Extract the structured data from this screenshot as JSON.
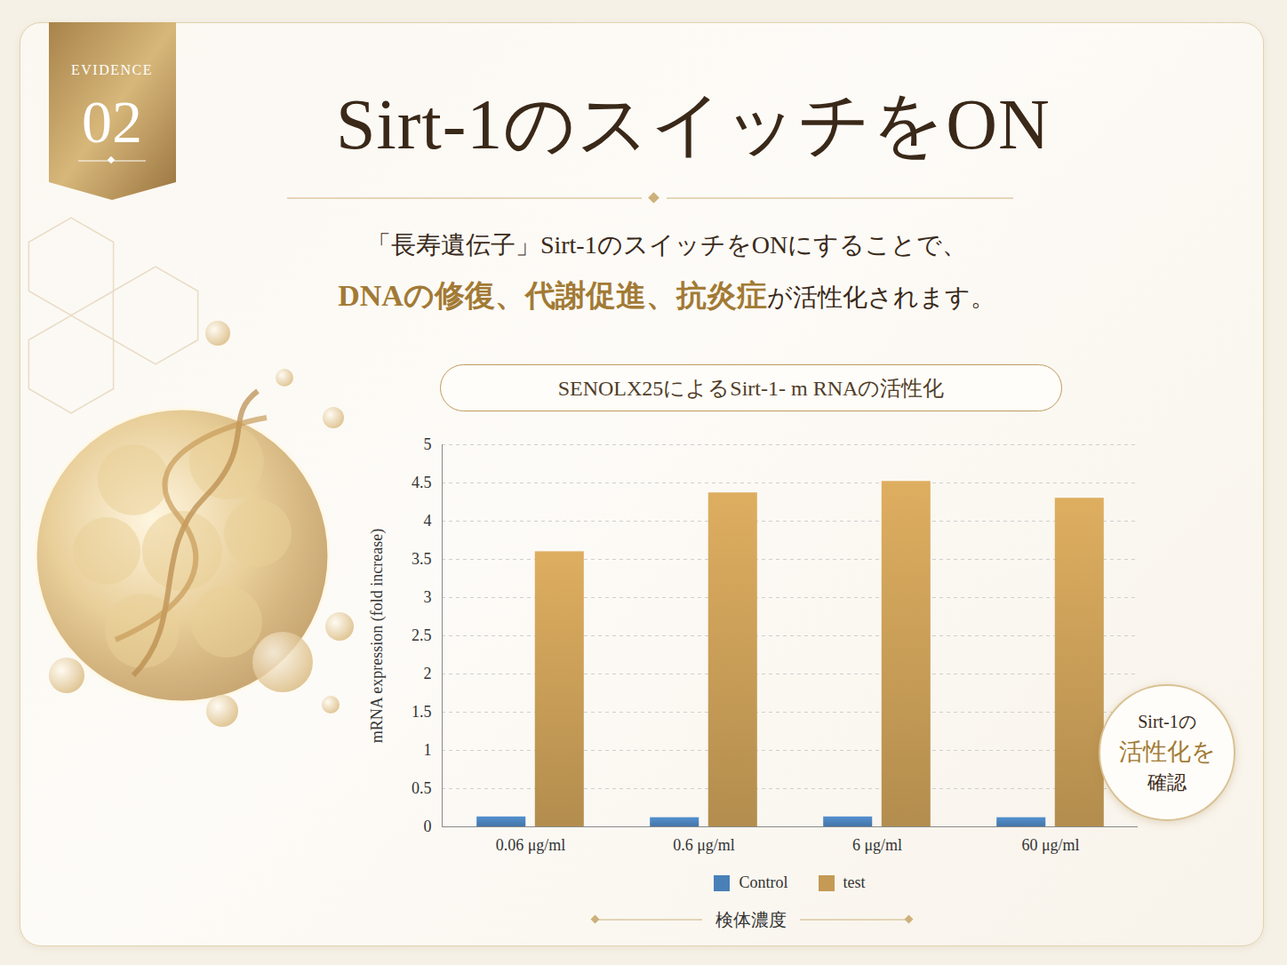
{
  "badge": {
    "label": "EVIDENCE",
    "number": "02"
  },
  "headline": "Sirt-1のスイッチをON",
  "lead": {
    "line1": "「長寿遺伝子」Sirt-1のスイッチをONにすることで、",
    "line2_highlight": "DNAの修復、代謝促進、抗炎症",
    "line2_rest": "が活性化されます。"
  },
  "callout": [
    "Sirt-1の",
    "活性化を",
    "確認"
  ],
  "chart_data": {
    "type": "bar",
    "title": "SENOLX25によるSirt-1- m RNAの活性化",
    "x_label": "検体濃度",
    "y_label": "mRNA expression (fold increase)",
    "categories": [
      "0.06 μg/ml",
      "0.6 μg/ml",
      "6 μg/ml",
      "60 μg/ml"
    ],
    "series": [
      {
        "name": "Control",
        "color": "#4a80b8",
        "values": [
          0.13,
          0.12,
          0.13,
          0.12
        ]
      },
      {
        "name": "test",
        "color": "#c49a55",
        "values": [
          3.6,
          4.37,
          4.52,
          4.3
        ]
      }
    ],
    "ylim": [
      0,
      5
    ],
    "yticks": [
      0,
      0.5,
      1,
      1.5,
      2,
      2.5,
      3,
      3.5,
      4,
      4.5,
      5
    ],
    "grid": true,
    "legend": "bottom"
  }
}
